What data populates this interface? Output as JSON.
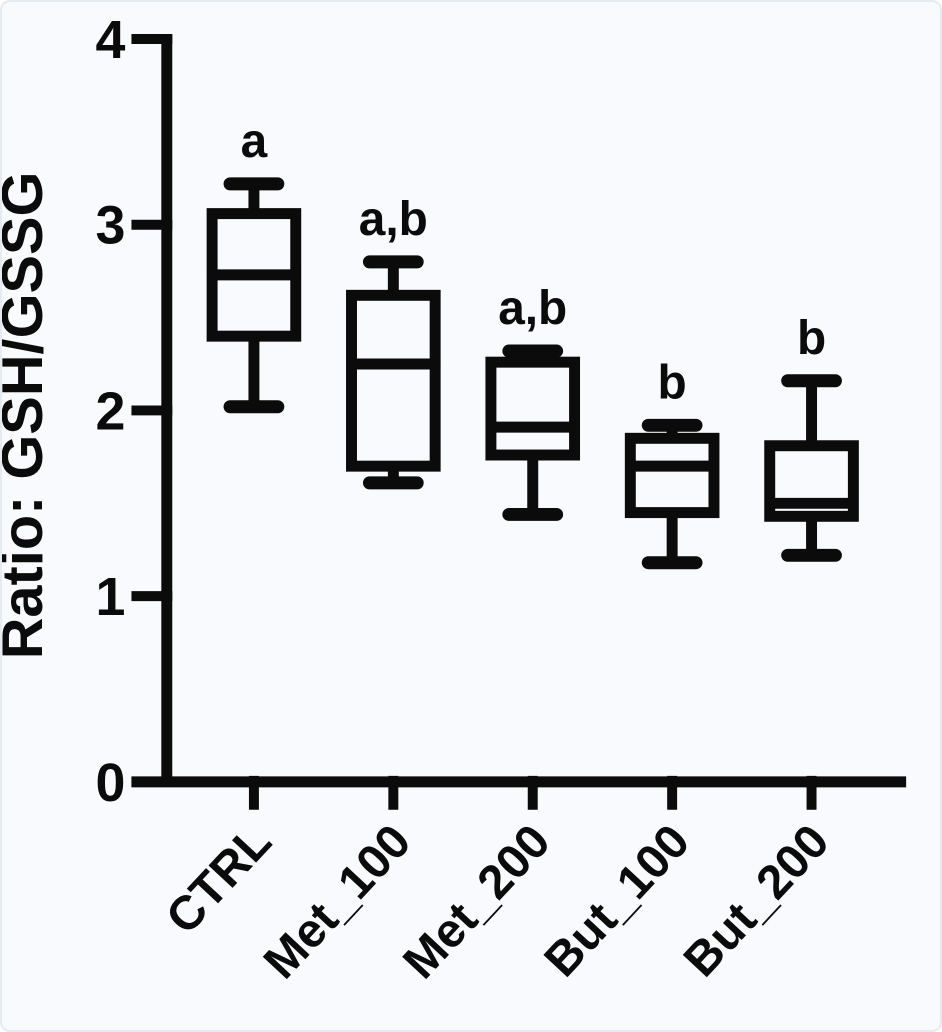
{
  "figure": {
    "background_color": "#f8fafd",
    "border_color": "#e6eaf1",
    "ink_color": "#0b0b0b"
  },
  "chart_data": {
    "type": "box",
    "title": "",
    "xlabel": "",
    "ylabel": "Ratio: GSH/GSSG",
    "ylim": [
      0,
      4
    ],
    "yticks": [
      "0",
      "1",
      "2",
      "3",
      "4"
    ],
    "grid": false,
    "legend": "none",
    "categories": [
      "CTRL",
      "Met_100",
      "Met_200",
      "But_100",
      "But_200"
    ],
    "boxes": [
      {
        "category": "CTRL",
        "min": 2.02,
        "q1": 2.4,
        "median": 2.73,
        "q3": 3.06,
        "max": 3.22,
        "annotation": "a"
      },
      {
        "category": "Met_100",
        "min": 1.61,
        "q1": 1.7,
        "median": 2.25,
        "q3": 2.62,
        "max": 2.8,
        "annotation": "a,b"
      },
      {
        "category": "Met_200",
        "min": 1.44,
        "q1": 1.76,
        "median": 1.91,
        "q3": 2.26,
        "max": 2.32,
        "annotation": "a,b"
      },
      {
        "category": "But_100",
        "min": 1.18,
        "q1": 1.45,
        "median": 1.7,
        "q3": 1.85,
        "max": 1.92,
        "annotation": "b"
      },
      {
        "category": "But_200",
        "min": 1.22,
        "q1": 1.43,
        "median": 1.5,
        "q3": 1.81,
        "max": 2.16,
        "annotation": "b"
      }
    ]
  }
}
